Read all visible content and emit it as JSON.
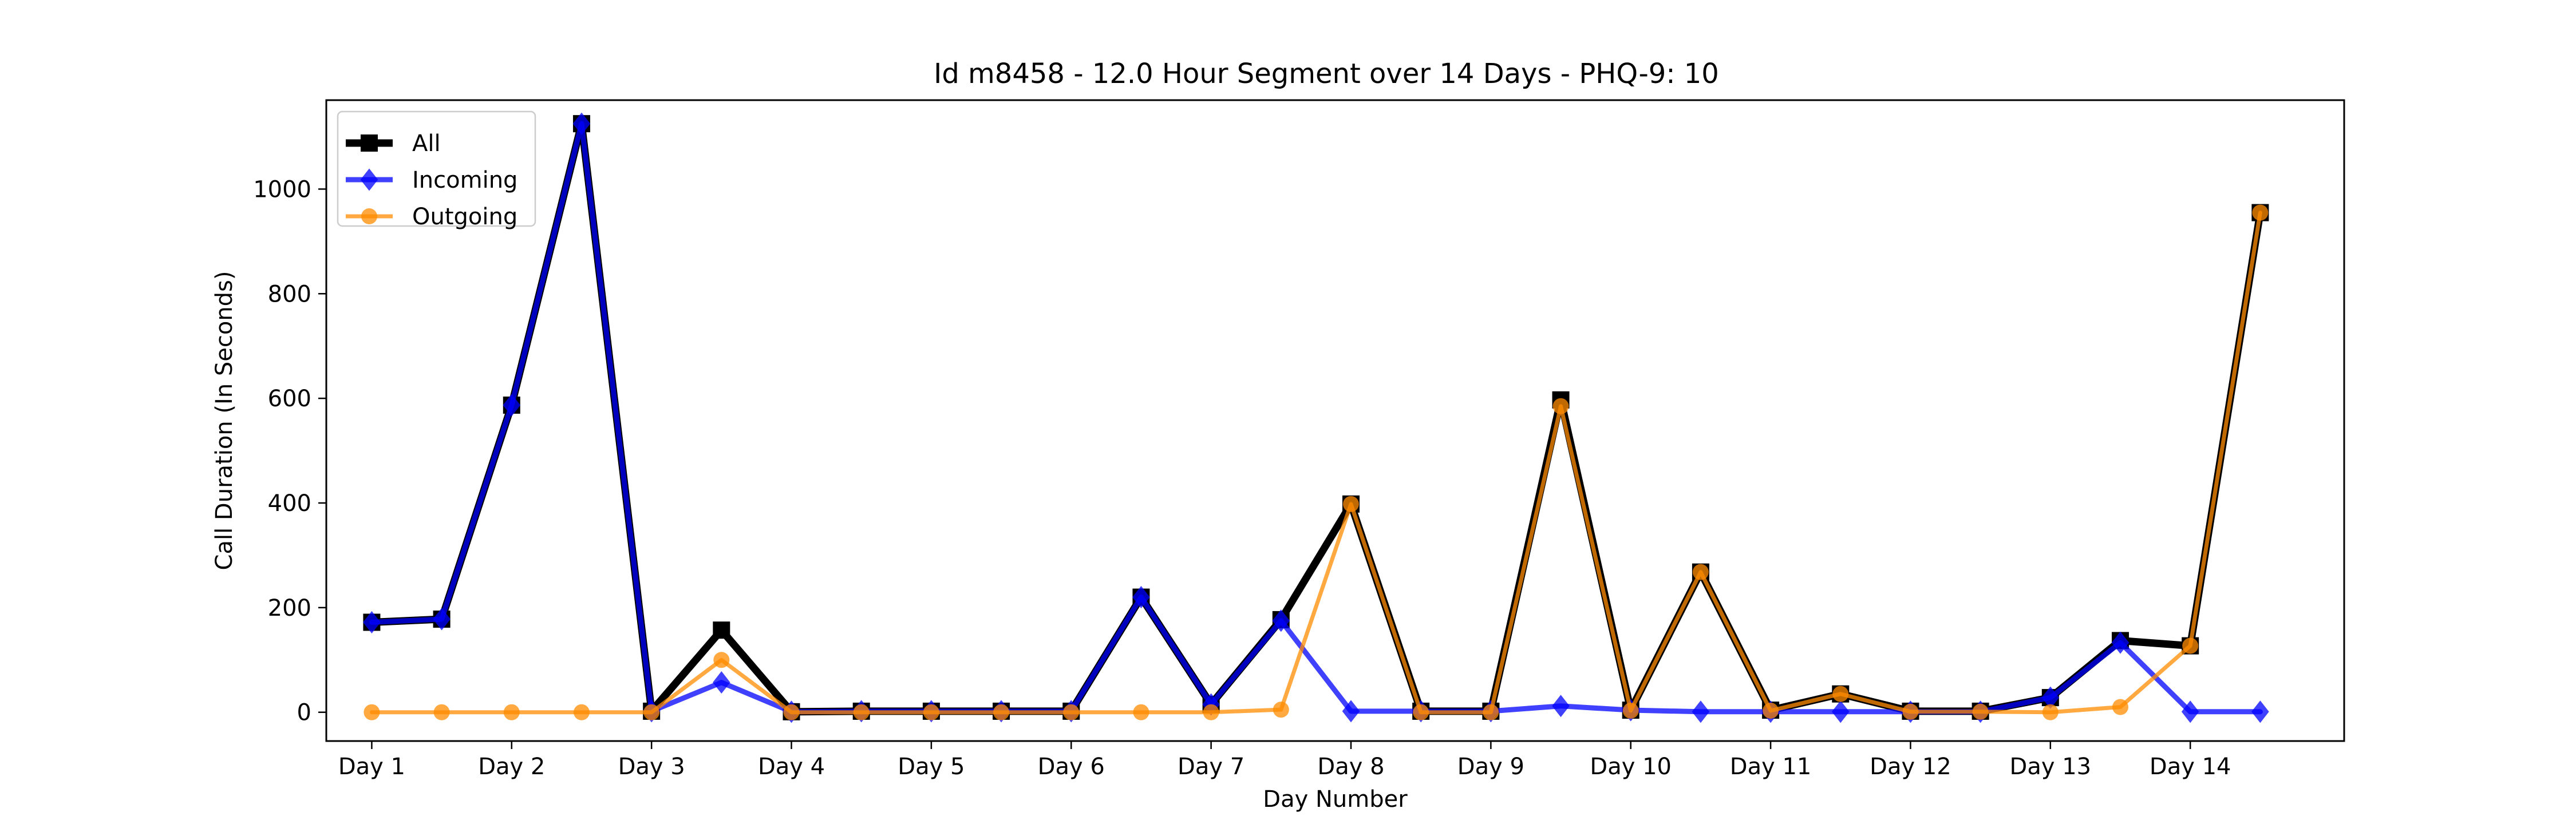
{
  "chart_data": {
    "type": "line",
    "title": "Id m8458 - 12.0 Hour Segment over 14 Days - PHQ-9: 10",
    "xlabel": "Day Number",
    "ylabel": "Call Duration (In Seconds)",
    "categories": [
      "Day 1",
      "Day 2",
      "Day 3",
      "Day 4",
      "Day 5",
      "Day 6",
      "Day 7",
      "Day 8",
      "Day 9",
      "Day 10",
      "Day 11",
      "Day 12",
      "Day 13",
      "Day 14"
    ],
    "x": [
      0,
      1,
      2,
      3,
      4,
      5,
      6,
      7,
      8,
      9,
      10,
      11,
      12,
      13,
      14,
      15,
      16,
      17,
      18,
      19,
      20,
      21,
      22,
      23,
      24,
      25,
      26,
      27
    ],
    "xlim": [
      -0.65,
      28.2
    ],
    "ylim": [
      -55,
      1170
    ],
    "yticks": [
      0,
      200,
      400,
      600,
      800,
      1000
    ],
    "grid": false,
    "legend_position": "top-left",
    "series": [
      {
        "name": "All",
        "color": "#000000",
        "marker": "square",
        "values": [
          172,
          178,
          587,
          1125,
          2,
          157,
          1,
          2,
          2,
          2,
          2,
          220,
          15,
          177,
          398,
          2,
          2,
          597,
          4,
          268,
          4,
          35,
          2,
          2,
          28,
          137,
          127,
          955
        ]
      },
      {
        "name": "Incoming",
        "color": "#0000ff",
        "marker": "diamond",
        "values": [
          172,
          178,
          587,
          1125,
          2,
          57,
          1,
          2,
          2,
          2,
          2,
          220,
          15,
          175,
          2,
          2,
          2,
          12,
          4,
          1,
          1,
          1,
          1,
          1,
          28,
          133,
          1,
          1
        ]
      },
      {
        "name": "Outgoing",
        "color": "#ff8c00",
        "marker": "circle",
        "values": [
          0,
          0,
          0,
          0,
          0,
          100,
          0,
          0,
          0,
          0,
          0,
          0,
          0,
          5,
          398,
          0,
          0,
          585,
          3,
          268,
          3,
          35,
          1,
          1,
          0,
          10,
          127,
          955
        ]
      }
    ]
  }
}
